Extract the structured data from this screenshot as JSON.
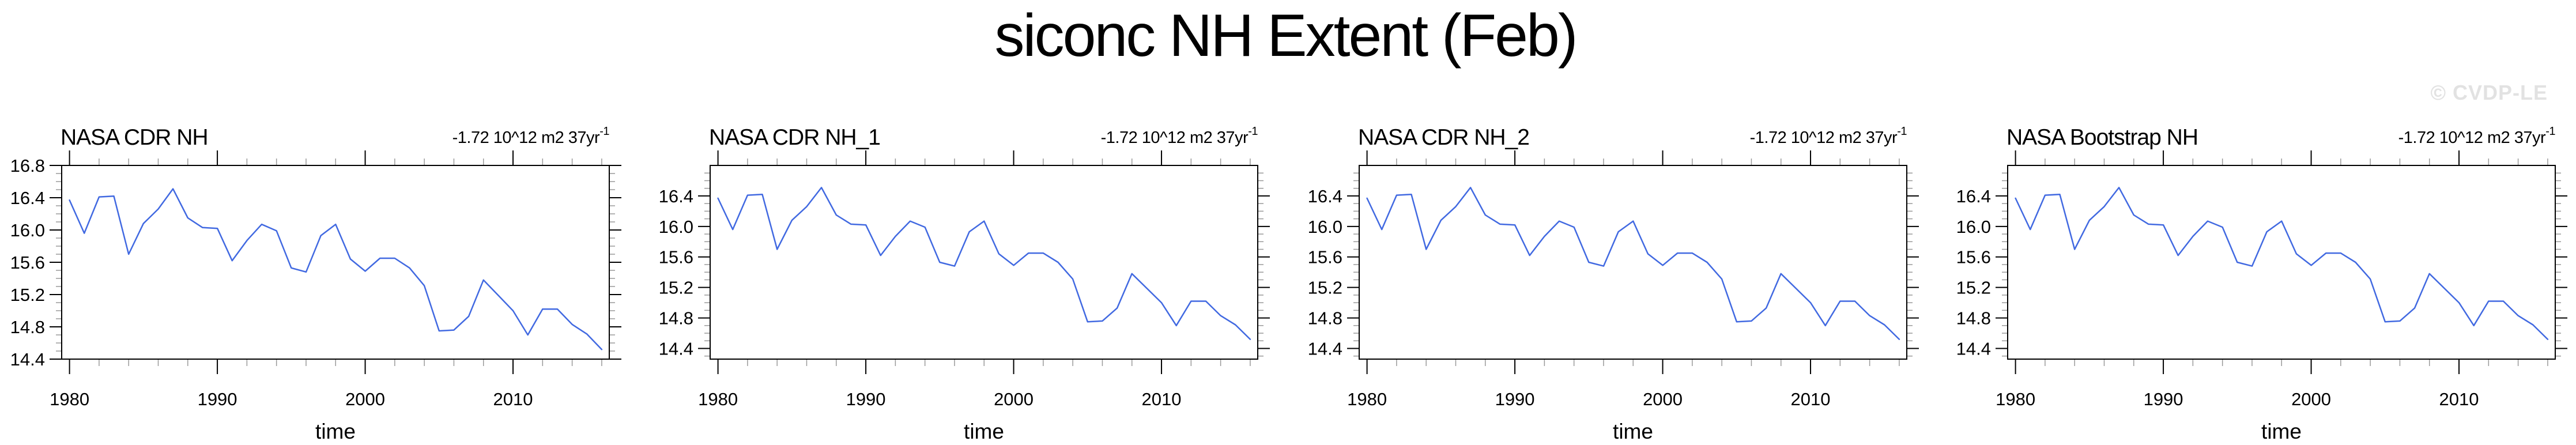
{
  "figure_title": "siconc NH Extent (Feb)",
  "watermark": "© CVDP-LE",
  "colors": {
    "line": "#4169E1",
    "axis": "#000000",
    "minor_tick": "#999999",
    "watermark": "#e2e2e2",
    "background": "#ffffff"
  },
  "chart_data": [
    {
      "type": "line",
      "title": "NASA CDR NH",
      "annotation": "-1.72 10^12 m2 37yr",
      "annotation_sup": "-1",
      "xlabel": "time",
      "x": [
        1980,
        1981,
        1982,
        1983,
        1984,
        1985,
        1986,
        1987,
        1988,
        1989,
        1990,
        1991,
        1992,
        1993,
        1994,
        1995,
        1996,
        1997,
        1998,
        1999,
        2000,
        2001,
        2002,
        2003,
        2004,
        2005,
        2006,
        2007,
        2008,
        2009,
        2010,
        2011,
        2012,
        2013,
        2014,
        2015,
        2016
      ],
      "values": [
        16.37,
        15.96,
        16.41,
        16.42,
        15.7,
        16.08,
        16.26,
        16.51,
        16.15,
        16.03,
        16.02,
        15.62,
        15.87,
        16.07,
        15.99,
        15.53,
        15.48,
        15.93,
        16.07,
        15.64,
        15.49,
        15.65,
        15.65,
        15.53,
        15.31,
        14.75,
        14.76,
        14.93,
        15.38,
        15.19,
        15.0,
        14.7,
        15.02,
        15.02,
        14.83,
        14.71,
        14.52
      ],
      "xlim": [
        1979.47,
        2016.51
      ],
      "ylim": [
        14.4,
        16.8
      ],
      "xticks": [
        1980,
        1990,
        2000,
        2010
      ],
      "x_minor_step": 2,
      "yticks": [
        16.8,
        16.4,
        16.0,
        15.6,
        15.2,
        14.8,
        14.4
      ],
      "y_minor_step": 0.1,
      "grid": false,
      "legend": "none"
    },
    {
      "type": "line",
      "title": "NASA CDR NH_1",
      "annotation": "-1.72 10^12 m2 37yr",
      "annotation_sup": "-1",
      "xlabel": "time",
      "x": [
        1980,
        1981,
        1982,
        1983,
        1984,
        1985,
        1986,
        1987,
        1988,
        1989,
        1990,
        1991,
        1992,
        1993,
        1994,
        1995,
        1996,
        1997,
        1998,
        1999,
        2000,
        2001,
        2002,
        2003,
        2004,
        2005,
        2006,
        2007,
        2008,
        2009,
        2010,
        2011,
        2012,
        2013,
        2014,
        2015,
        2016
      ],
      "values": [
        16.37,
        15.96,
        16.41,
        16.42,
        15.7,
        16.08,
        16.26,
        16.51,
        16.15,
        16.03,
        16.02,
        15.62,
        15.87,
        16.07,
        15.99,
        15.53,
        15.48,
        15.93,
        16.07,
        15.64,
        15.49,
        15.65,
        15.65,
        15.53,
        15.31,
        14.75,
        14.76,
        14.93,
        15.38,
        15.19,
        15.0,
        14.7,
        15.02,
        15.02,
        14.83,
        14.71,
        14.52
      ],
      "xlim": [
        1979.47,
        2016.51
      ],
      "ylim": [
        14.26,
        16.8
      ],
      "xticks": [
        1980,
        1990,
        2000,
        2010
      ],
      "x_minor_step": 2,
      "yticks": [
        16.4,
        16.0,
        15.6,
        15.2,
        14.8,
        14.4
      ],
      "y_minor_step": 0.1,
      "grid": false,
      "legend": "none"
    },
    {
      "type": "line",
      "title": "NASA CDR NH_2",
      "annotation": "-1.72 10^12 m2 37yr",
      "annotation_sup": "-1",
      "xlabel": "time",
      "x": [
        1980,
        1981,
        1982,
        1983,
        1984,
        1985,
        1986,
        1987,
        1988,
        1989,
        1990,
        1991,
        1992,
        1993,
        1994,
        1995,
        1996,
        1997,
        1998,
        1999,
        2000,
        2001,
        2002,
        2003,
        2004,
        2005,
        2006,
        2007,
        2008,
        2009,
        2010,
        2011,
        2012,
        2013,
        2014,
        2015,
        2016
      ],
      "values": [
        16.37,
        15.96,
        16.41,
        16.42,
        15.7,
        16.08,
        16.26,
        16.51,
        16.15,
        16.03,
        16.02,
        15.62,
        15.87,
        16.07,
        15.99,
        15.53,
        15.48,
        15.93,
        16.07,
        15.64,
        15.49,
        15.65,
        15.65,
        15.53,
        15.31,
        14.75,
        14.76,
        14.93,
        15.38,
        15.19,
        15.0,
        14.7,
        15.02,
        15.02,
        14.83,
        14.71,
        14.52
      ],
      "xlim": [
        1979.47,
        2016.51
      ],
      "ylim": [
        14.26,
        16.8
      ],
      "xticks": [
        1980,
        1990,
        2000,
        2010
      ],
      "x_minor_step": 2,
      "yticks": [
        16.4,
        16.0,
        15.6,
        15.2,
        14.8,
        14.4
      ],
      "y_minor_step": 0.1,
      "grid": false,
      "legend": "none"
    },
    {
      "type": "line",
      "title": "NASA Bootstrap NH",
      "annotation": "-1.72 10^12 m2 37yr",
      "annotation_sup": "-1",
      "xlabel": "time",
      "x": [
        1980,
        1981,
        1982,
        1983,
        1984,
        1985,
        1986,
        1987,
        1988,
        1989,
        1990,
        1991,
        1992,
        1993,
        1994,
        1995,
        1996,
        1997,
        1998,
        1999,
        2000,
        2001,
        2002,
        2003,
        2004,
        2005,
        2006,
        2007,
        2008,
        2009,
        2010,
        2011,
        2012,
        2013,
        2014,
        2015,
        2016
      ],
      "values": [
        16.37,
        15.96,
        16.41,
        16.42,
        15.7,
        16.08,
        16.26,
        16.51,
        16.15,
        16.03,
        16.02,
        15.62,
        15.87,
        16.07,
        15.99,
        15.53,
        15.48,
        15.93,
        16.07,
        15.64,
        15.49,
        15.65,
        15.65,
        15.53,
        15.31,
        14.75,
        14.76,
        14.93,
        15.38,
        15.19,
        15.0,
        14.7,
        15.02,
        15.02,
        14.83,
        14.71,
        14.52
      ],
      "xlim": [
        1979.47,
        2016.51
      ],
      "ylim": [
        14.26,
        16.8
      ],
      "xticks": [
        1980,
        1990,
        2000,
        2010
      ],
      "x_minor_step": 2,
      "yticks": [
        16.4,
        16.0,
        15.6,
        15.2,
        14.8,
        14.4
      ],
      "y_minor_step": 0.1,
      "grid": false,
      "legend": "none"
    }
  ]
}
